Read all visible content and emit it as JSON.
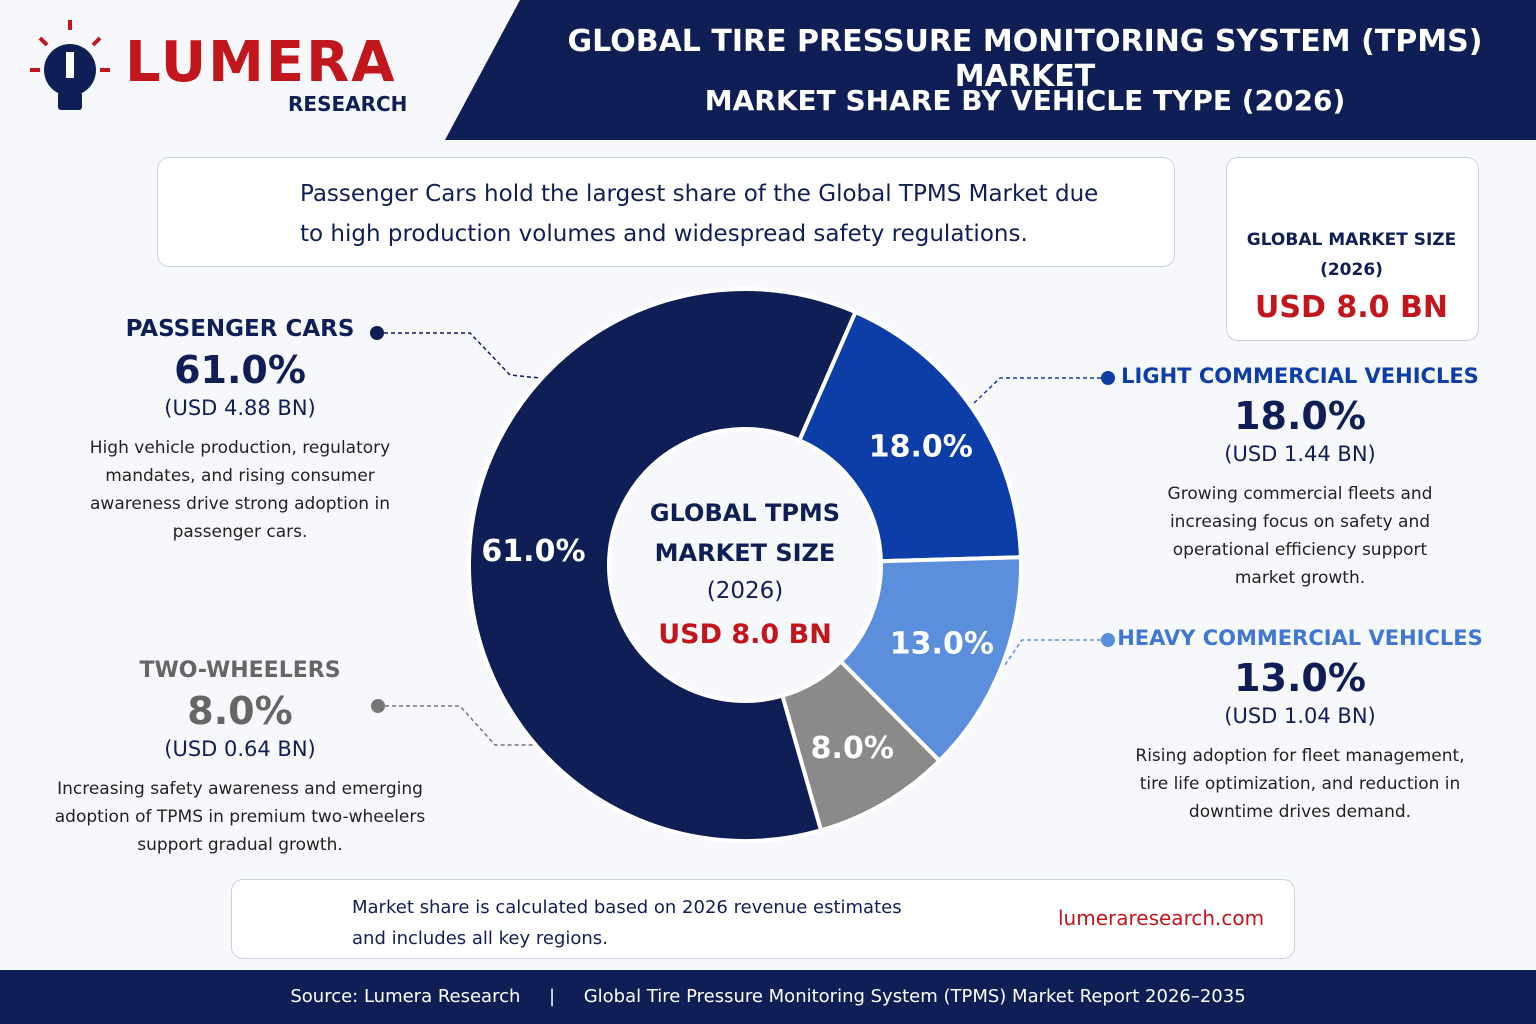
{
  "logo": {
    "name": "LUMERA",
    "sub": "RESEARCH"
  },
  "header": {
    "title": "GLOBAL TIRE PRESSURE MONITORING SYSTEM (TPMS) MARKET",
    "subtitle": "MARKET SHARE BY VEHICLE TYPE (2026)"
  },
  "insight": "Passenger Cars hold the largest share of the Global TPMS Market due to high production volumes and widespread safety regulations.",
  "market_size_box": {
    "label": "GLOBAL MARKET SIZE",
    "year": "(2026)",
    "value": "USD 8.0 BN"
  },
  "chart_data": {
    "type": "donut",
    "categories": [
      "PASSENGER CARS",
      "LIGHT COMMERCIAL VEHICLES",
      "HEAVY COMMERCIAL VEHICLES",
      "TWO-WHEELERS"
    ],
    "values": [
      61,
      18,
      13,
      8
    ],
    "value_labels": [
      "61.0%",
      "18.0%",
      "13.0%",
      "8.0%"
    ],
    "colors": [
      "#0f1f55",
      "#0d3ea8",
      "#5b8fdc",
      "#8a8a8a"
    ],
    "center": {
      "lines": [
        "GLOBAL TPMS",
        "MARKET SIZE"
      ],
      "year": "(2026)",
      "value": "USD 8.0 BN"
    }
  },
  "callouts": [
    {
      "amount": "(USD 4.88 BN)",
      "description": "High vehicle production, regulatory mandates, and rising consumer awareness drive strong adoption in passenger cars."
    },
    {
      "amount": "(USD 1.44 BN)",
      "description": "Growing commercial fleets and increasing focus on safety and operational efficiency support market growth."
    },
    {
      "amount": "(USD 1.04 BN)",
      "description": "Rising adoption for fleet management, tire life optimization, and reduction in downtime drives demand."
    },
    {
      "amount": "(USD 0.64 BN)",
      "description": "Increasing safety awareness and emerging adoption of TPMS in premium two-wheelers support gradual growth."
    }
  ],
  "note": "Market share is calculated based on 2026 revenue estimates and includes all key regions.",
  "url": "lumeraresearch.com",
  "footer": {
    "source": "Source: Lumera Research",
    "report": "Global Tire Pressure Monitoring System (TPMS) Market Report 2026–2035"
  }
}
